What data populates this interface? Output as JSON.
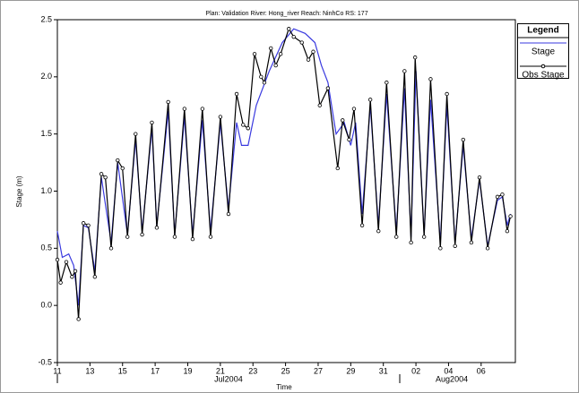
{
  "chart_data": {
    "type": "line",
    "title": "Plan: Validation   River: Hong_river   Reach: NinhCo   RS: 177",
    "x_label": "Time",
    "y_label": "Stage (m)",
    "legend_title": "Legend",
    "legend_position": "right",
    "month_labels": [
      {
        "value": 21.5,
        "label": "Jul2004"
      },
      {
        "value": 35.2,
        "label": "Aug2004"
      }
    ],
    "xlim": [
      11,
      39.1
    ],
    "ylim": [
      -0.5,
      2.5
    ],
    "xticks": [
      11,
      13,
      15,
      17,
      19,
      21,
      23,
      25,
      27,
      29,
      31,
      {
        "value": 33,
        "label": "02"
      },
      {
        "value": 35,
        "label": "04"
      },
      {
        "value": 37,
        "label": "06"
      }
    ],
    "yticks": [
      -0.5,
      {
        "value": 0,
        "label": "0.0"
      },
      0.5,
      {
        "value": 1,
        "label": "1.0"
      },
      1.5,
      {
        "value": 2,
        "label": "2.0"
      },
      2.5
    ],
    "series": [
      {
        "name": "Stage",
        "color": "#3a3adf",
        "marker": false,
        "x": [
          11.0,
          11.3,
          11.7,
          12.0,
          12.3,
          12.6,
          12.9,
          13.3,
          13.7,
          14.3,
          14.7,
          15.3,
          15.8,
          16.2,
          16.8,
          17.1,
          17.8,
          18.2,
          18.8,
          19.3,
          19.9,
          20.4,
          21.0,
          21.5,
          22.0,
          22.3,
          22.7,
          23.2,
          24.0,
          24.8,
          25.5,
          26.2,
          26.8,
          27.2,
          27.6,
          28.1,
          28.6,
          29.0,
          29.3,
          29.7,
          30.2,
          30.7,
          31.2,
          31.8,
          32.3,
          32.7,
          33.0,
          33.5,
          33.9,
          34.5,
          34.9,
          35.4,
          35.9,
          36.4,
          36.9,
          37.4,
          38.0,
          38.3,
          38.6,
          38.8
        ],
        "values": [
          0.65,
          0.42,
          0.45,
          0.35,
          0.0,
          0.7,
          0.68,
          0.3,
          1.12,
          0.55,
          1.25,
          0.62,
          1.45,
          0.65,
          1.55,
          0.7,
          1.7,
          0.62,
          1.65,
          0.62,
          1.62,
          0.65,
          1.6,
          0.85,
          1.6,
          1.4,
          1.4,
          1.75,
          2.05,
          2.3,
          2.42,
          2.38,
          2.3,
          2.1,
          1.95,
          1.5,
          1.6,
          1.4,
          1.6,
          0.8,
          1.75,
          0.7,
          1.85,
          0.65,
          1.9,
          0.6,
          2.05,
          0.62,
          1.8,
          0.55,
          1.75,
          0.55,
          1.4,
          0.58,
          1.1,
          0.52,
          0.92,
          0.95,
          0.7,
          0.8
        ]
      },
      {
        "name": "Obs Stage",
        "color": "#000000",
        "marker": true,
        "x": [
          11.0,
          11.2,
          11.55,
          11.9,
          12.1,
          12.3,
          12.6,
          12.9,
          13.3,
          13.7,
          13.95,
          14.3,
          14.7,
          15.0,
          15.3,
          15.8,
          16.2,
          16.8,
          17.1,
          17.8,
          18.2,
          18.8,
          19.3,
          19.9,
          20.4,
          21.0,
          21.5,
          22.0,
          22.4,
          22.7,
          23.1,
          23.5,
          23.7,
          24.1,
          24.4,
          24.7,
          25.2,
          25.5,
          26.0,
          26.4,
          26.7,
          27.1,
          27.6,
          28.2,
          28.5,
          28.9,
          29.2,
          29.7,
          30.2,
          30.7,
          31.2,
          31.8,
          32.3,
          32.7,
          32.95,
          33.5,
          33.9,
          34.5,
          34.9,
          35.4,
          35.9,
          36.4,
          36.9,
          37.4,
          38.0,
          38.3,
          38.6,
          38.8
        ],
        "values": [
          0.4,
          0.2,
          0.38,
          0.25,
          0.3,
          -0.12,
          0.72,
          0.7,
          0.25,
          1.15,
          1.12,
          0.5,
          1.27,
          1.2,
          0.6,
          1.5,
          0.62,
          1.6,
          0.68,
          1.78,
          0.6,
          1.72,
          0.58,
          1.72,
          0.6,
          1.65,
          0.8,
          1.85,
          1.58,
          1.55,
          2.2,
          2.0,
          1.95,
          2.25,
          2.1,
          2.2,
          2.42,
          2.35,
          2.3,
          2.15,
          2.22,
          1.75,
          1.9,
          1.2,
          1.62,
          1.45,
          1.72,
          0.7,
          1.8,
          0.65,
          1.95,
          0.6,
          2.05,
          0.55,
          2.17,
          0.6,
          1.98,
          0.5,
          1.85,
          0.52,
          1.45,
          0.55,
          1.12,
          0.5,
          0.95,
          0.97,
          0.65,
          0.78
        ]
      }
    ]
  }
}
